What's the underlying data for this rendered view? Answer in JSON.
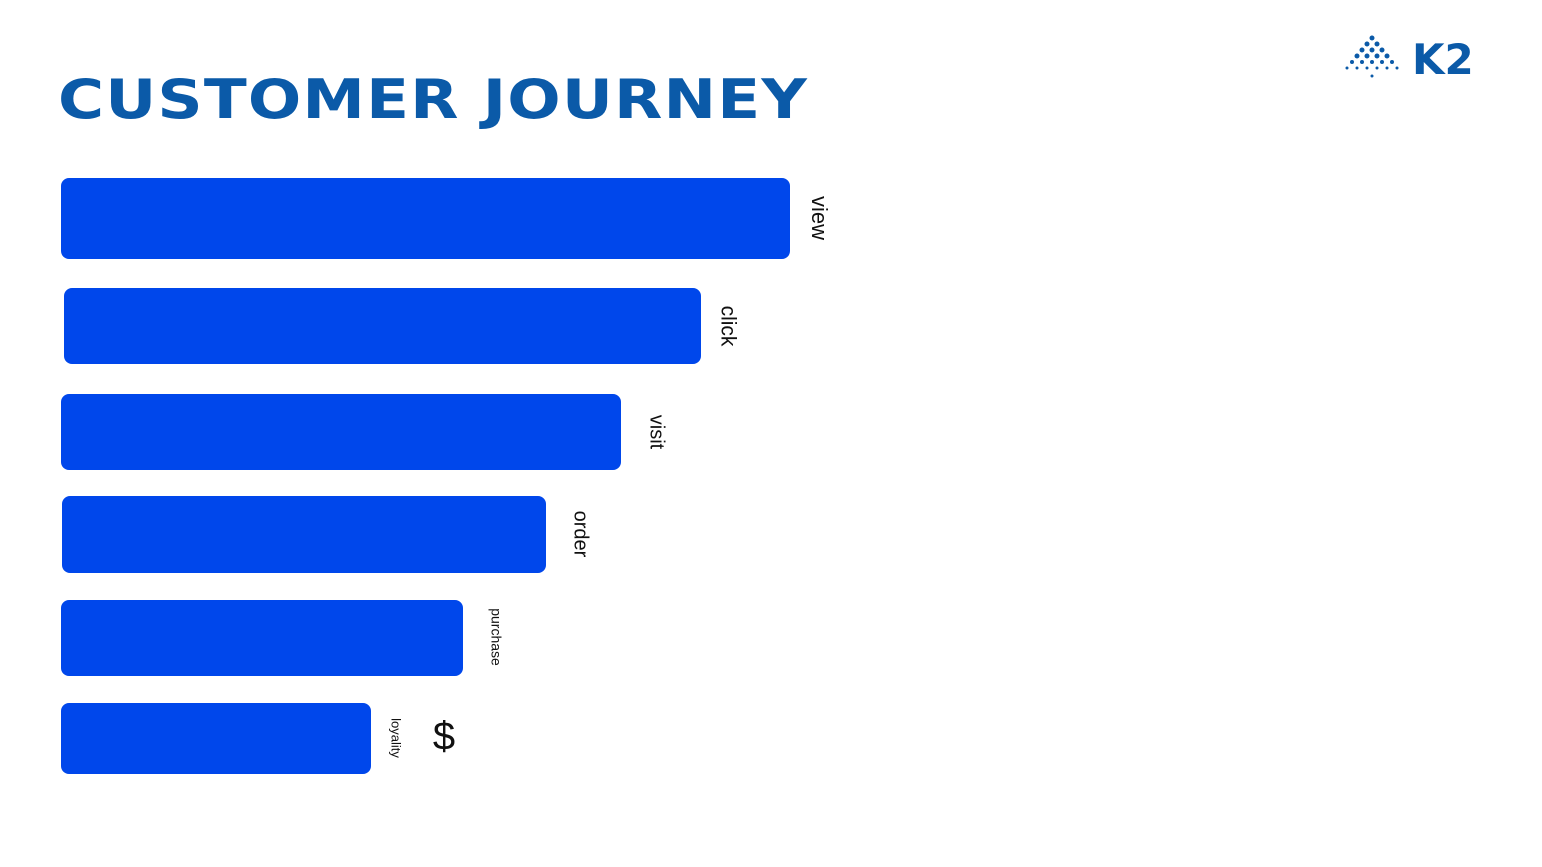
{
  "header": {
    "title": "CUSTOMER JOURNEY",
    "logo": "K2"
  },
  "stages": [
    {
      "label": "view"
    },
    {
      "label": "click"
    },
    {
      "label": "visit"
    },
    {
      "label": "order"
    },
    {
      "label": "purchase"
    },
    {
      "label": "loyality"
    }
  ],
  "symbol": "$"
}
